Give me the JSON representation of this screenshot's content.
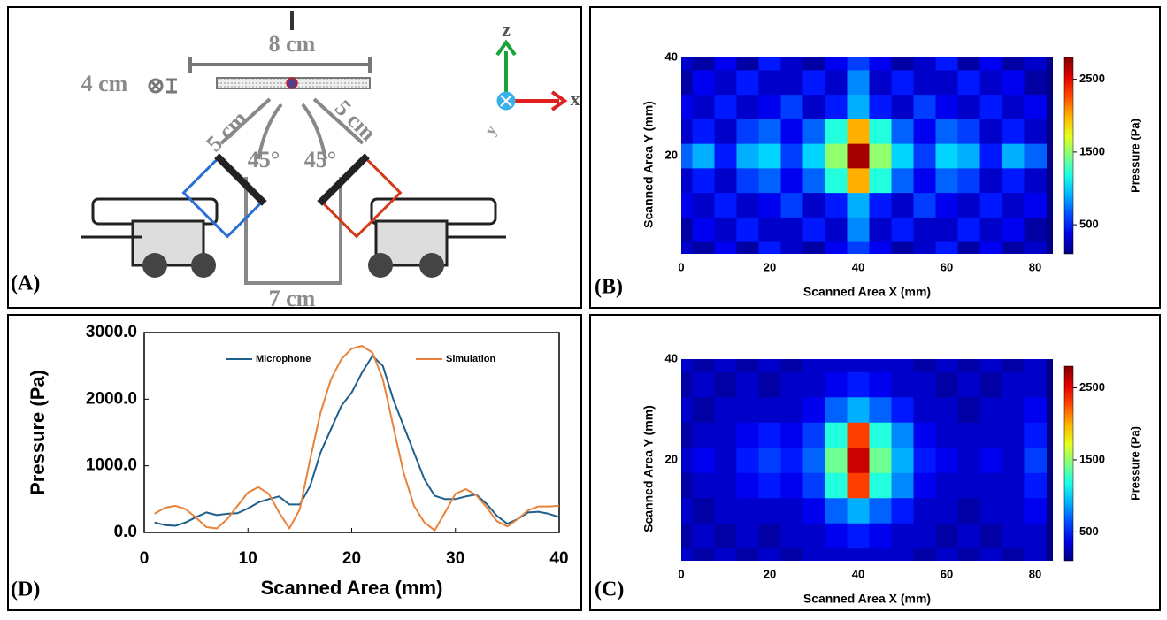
{
  "panels": [
    "(A)",
    "(B)",
    "(D)",
    "(C)"
  ],
  "diagram": {
    "top_width": "8 cm",
    "depth": "4 cm",
    "left_distance": "5 cm",
    "right_distance": "5 cm",
    "left_angle": "45°",
    "right_angle": "45°",
    "gap": "7 cm",
    "axis_z": "z",
    "axis_x": "x",
    "axis_y": "y"
  },
  "chart_data": [
    {
      "type": "heatmap",
      "xlabel": "Scanned Area X (mm)",
      "ylabel": "Scanned Area Y (mm)",
      "colorbar_label": "Pressure (Pa)",
      "colormap": "jet",
      "x": [
        0,
        5,
        10,
        15,
        20,
        25,
        30,
        35,
        40,
        45,
        50,
        55,
        60,
        65,
        70,
        75,
        80
      ],
      "y": [
        0,
        5,
        10,
        15,
        20,
        25,
        30,
        35,
        40
      ],
      "values": [
        [
          300,
          200,
          400,
          200,
          500,
          300,
          200,
          400,
          600,
          400,
          200,
          300,
          500,
          200,
          400,
          200,
          300
        ],
        [
          200,
          400,
          300,
          500,
          300,
          300,
          500,
          300,
          800,
          300,
          500,
          300,
          300,
          500,
          300,
          400,
          200
        ],
        [
          400,
          300,
          500,
          300,
          400,
          600,
          300,
          500,
          900,
          500,
          300,
          600,
          400,
          300,
          500,
          300,
          400
        ],
        [
          300,
          500,
          300,
          600,
          700,
          400,
          700,
          1200,
          2000,
          1200,
          700,
          400,
          700,
          600,
          300,
          500,
          300
        ],
        [
          700,
          900,
          500,
          900,
          1000,
          600,
          1000,
          1500,
          2700,
          1500,
          1000,
          600,
          1000,
          900,
          500,
          900,
          700
        ],
        [
          300,
          500,
          300,
          600,
          700,
          400,
          700,
          1200,
          2000,
          1200,
          700,
          400,
          700,
          600,
          300,
          500,
          300
        ],
        [
          400,
          300,
          500,
          300,
          400,
          600,
          300,
          500,
          900,
          500,
          300,
          600,
          400,
          300,
          500,
          300,
          400
        ],
        [
          200,
          400,
          300,
          500,
          300,
          300,
          500,
          300,
          800,
          300,
          500,
          300,
          300,
          500,
          300,
          400,
          200
        ],
        [
          300,
          200,
          400,
          200,
          500,
          300,
          200,
          400,
          600,
          400,
          200,
          300,
          500,
          200,
          400,
          200,
          300
        ]
      ],
      "xlim": [
        0,
        84
      ],
      "ylim": [
        0,
        40
      ],
      "xticks": [
        0,
        20,
        40,
        60,
        80
      ],
      "yticks": [
        20,
        40
      ],
      "zlim": [
        100,
        2800
      ],
      "zticks": [
        500,
        1500,
        2500
      ]
    },
    {
      "type": "heatmap",
      "xlabel": "Scanned Area X (mm)",
      "ylabel": "Scanned Area Y (mm)",
      "colorbar_label": "Pressure (Pa)",
      "colormap": "jet",
      "x": [
        0,
        5,
        10,
        15,
        20,
        25,
        30,
        35,
        40,
        45,
        50,
        55,
        60,
        65,
        70,
        75,
        80
      ],
      "y": [
        0,
        5,
        10,
        15,
        20,
        25,
        30,
        35,
        40
      ],
      "values": [
        [
          300,
          200,
          300,
          200,
          300,
          200,
          300,
          300,
          300,
          300,
          300,
          200,
          300,
          200,
          300,
          200,
          300
        ],
        [
          200,
          300,
          200,
          300,
          200,
          300,
          300,
          400,
          500,
          400,
          300,
          300,
          200,
          300,
          200,
          300,
          300
        ],
        [
          300,
          200,
          300,
          300,
          300,
          300,
          400,
          700,
          900,
          700,
          500,
          300,
          300,
          200,
          300,
          300,
          400
        ],
        [
          200,
          300,
          300,
          400,
          500,
          400,
          600,
          1200,
          2300,
          1200,
          800,
          400,
          300,
          300,
          300,
          300,
          500
        ],
        [
          300,
          400,
          300,
          500,
          600,
          500,
          700,
          1400,
          2600,
          1400,
          900,
          500,
          400,
          300,
          400,
          300,
          600
        ],
        [
          200,
          300,
          300,
          400,
          500,
          400,
          600,
          1200,
          2300,
          1200,
          800,
          400,
          300,
          300,
          300,
          300,
          500
        ],
        [
          300,
          200,
          300,
          300,
          300,
          300,
          400,
          700,
          900,
          700,
          500,
          300,
          300,
          200,
          300,
          300,
          400
        ],
        [
          200,
          300,
          200,
          300,
          200,
          300,
          300,
          400,
          500,
          400,
          300,
          300,
          200,
          300,
          200,
          300,
          300
        ],
        [
          300,
          200,
          300,
          200,
          300,
          200,
          300,
          300,
          300,
          300,
          300,
          200,
          300,
          200,
          300,
          200,
          300
        ]
      ],
      "xlim": [
        0,
        84
      ],
      "ylim": [
        0,
        40
      ],
      "xticks": [
        0,
        20,
        40,
        60,
        80
      ],
      "yticks": [
        20,
        40
      ],
      "zlim": [
        100,
        2800
      ],
      "zticks": [
        500,
        1500,
        2500
      ]
    },
    {
      "type": "line",
      "xlabel": "Scanned Area (mm)",
      "ylabel": "Pressure (Pa)",
      "legend": "top",
      "x": [
        1,
        2,
        3,
        4,
        5,
        6,
        7,
        8,
        9,
        10,
        11,
        12,
        13,
        14,
        15,
        16,
        17,
        18,
        19,
        20,
        21,
        22,
        23,
        24,
        25,
        26,
        27,
        28,
        29,
        30,
        31,
        32,
        33,
        34,
        35,
        36,
        37,
        38,
        39,
        40
      ],
      "series": [
        {
          "name": "Microphone",
          "color": "#1f5f8b",
          "values": [
            150,
            110,
            100,
            150,
            230,
            300,
            260,
            280,
            290,
            360,
            450,
            500,
            540,
            420,
            420,
            700,
            1200,
            1550,
            1900,
            2100,
            2400,
            2650,
            2500,
            2000,
            1600,
            1200,
            800,
            550,
            500,
            500,
            540,
            570,
            430,
            250,
            130,
            200,
            300,
            310,
            280,
            230
          ]
        },
        {
          "name": "Simulation",
          "color": "#e8823a",
          "values": [
            280,
            370,
            400,
            350,
            220,
            80,
            60,
            200,
            400,
            600,
            680,
            580,
            300,
            60,
            350,
            1100,
            1800,
            2300,
            2600,
            2760,
            2800,
            2700,
            2300,
            1600,
            900,
            400,
            150,
            30,
            300,
            580,
            650,
            560,
            380,
            170,
            90,
            200,
            330,
            390,
            390,
            400
          ]
        }
      ],
      "xlim": [
        0,
        40
      ],
      "ylim": [
        0,
        3000
      ],
      "xticks": [
        0,
        10,
        20,
        30,
        40
      ],
      "yticks": [
        {
          "value": 0,
          "label": "0.0"
        },
        {
          "value": 1000,
          "label": "1000.0"
        },
        {
          "value": 2000,
          "label": "2000.0"
        },
        {
          "value": 3000,
          "label": "3000.0"
        }
      ]
    }
  ]
}
